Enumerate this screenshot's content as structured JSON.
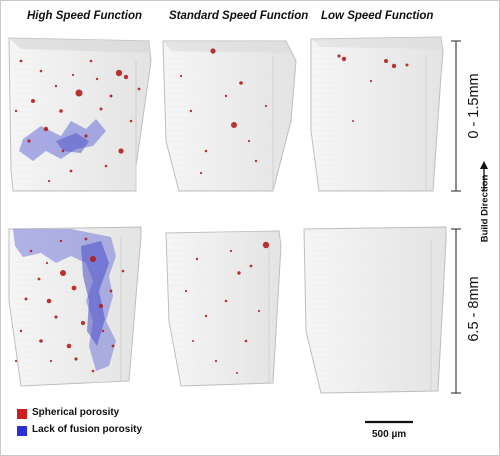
{
  "columns": [
    {
      "title": "High Speed Function"
    },
    {
      "title": "Standard Speed Function"
    },
    {
      "title": "Low Speed Function"
    }
  ],
  "rows": [
    {
      "label": "0 - 1.5mm"
    },
    {
      "label": "6.5 - 8mm"
    }
  ],
  "build_direction": "Build Direction",
  "legend": [
    {
      "label": "Spherical porosity",
      "color": "#cc1f1f"
    },
    {
      "label": "Lack of fusion porosity",
      "color": "#2a2fd9"
    }
  ],
  "scale_bar": {
    "label": "500 µm"
  },
  "colors": {
    "spherical_pore": "#b01818",
    "lack_of_fusion": "#6a6fd6",
    "sample_fill": "#f2f2f2",
    "sample_edge": "#bdbdbd"
  }
}
